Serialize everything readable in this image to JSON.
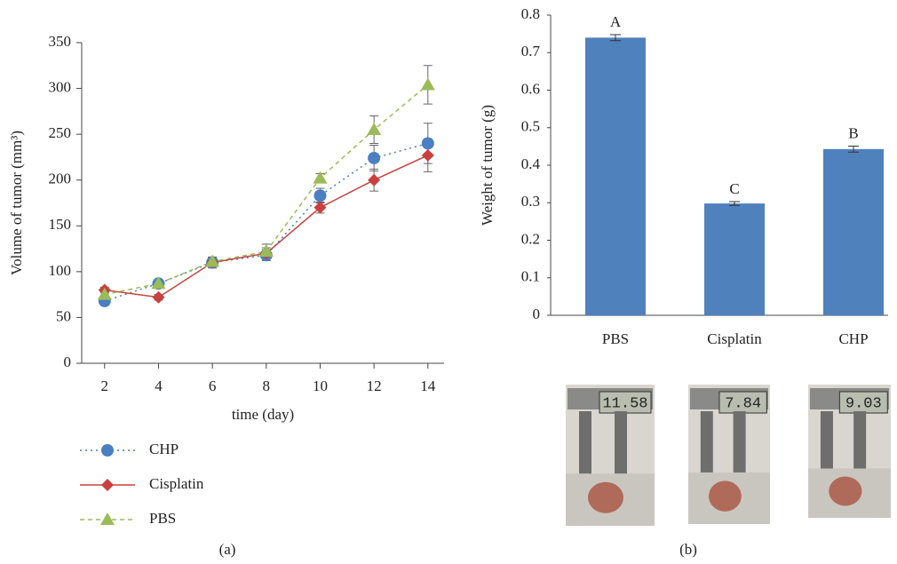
{
  "chart_data": [
    {
      "type": "line",
      "panel_label": "(a)",
      "x_label": "time (day)",
      "y_label": "Volume of tumor (mm³)",
      "x": [
        2,
        4,
        6,
        8,
        10,
        12,
        14
      ],
      "xlim": [
        1.15,
        14.6
      ],
      "xticks": [
        2,
        4,
        6,
        8,
        10,
        12,
        14
      ],
      "ylim": [
        0,
        350
      ],
      "yticks": [
        0,
        50,
        100,
        150,
        200,
        250,
        300,
        350
      ],
      "legend": "below",
      "series": [
        {
          "name": "CHP",
          "color": "#4a7fc1",
          "dash": "dotted",
          "marker": "circle",
          "values": [
            68,
            87,
            110,
            118,
            183,
            224,
            240
          ],
          "errors": [
            4,
            4,
            6,
            6,
            8,
            14,
            22
          ]
        },
        {
          "name": "Cisplatin",
          "color": "#c9403e",
          "dash": "solid",
          "marker": "diamond",
          "values": [
            80,
            72,
            110,
            120,
            170,
            200,
            227
          ],
          "errors": [
            3,
            3,
            5,
            6,
            6,
            12,
            18
          ]
        },
        {
          "name": "PBS",
          "color": "#9bbb59",
          "dash": "dashed",
          "marker": "triangle",
          "values": [
            75,
            87,
            111,
            122,
            202,
            255,
            304
          ],
          "errors": [
            3,
            3,
            5,
            8,
            5,
            15,
            21
          ]
        }
      ]
    },
    {
      "type": "bar",
      "panel_label": "(b)",
      "y_label": "Weight of tumor (g)",
      "categories": [
        "PBS",
        "Cisplatin",
        "CHP"
      ],
      "values": [
        0.74,
        0.298,
        0.443
      ],
      "errors": [
        0.008,
        0.005,
        0.008
      ],
      "annotations": [
        "A",
        "C",
        "B"
      ],
      "color": "#4f81bd",
      "ylim": [
        0,
        0.8
      ],
      "yticks": [
        0,
        0.1,
        0.2,
        0.3,
        0.4,
        0.5,
        0.6,
        0.7,
        0.8
      ],
      "photo_readings": [
        "11.58",
        "7.84",
        "9.03"
      ]
    }
  ]
}
